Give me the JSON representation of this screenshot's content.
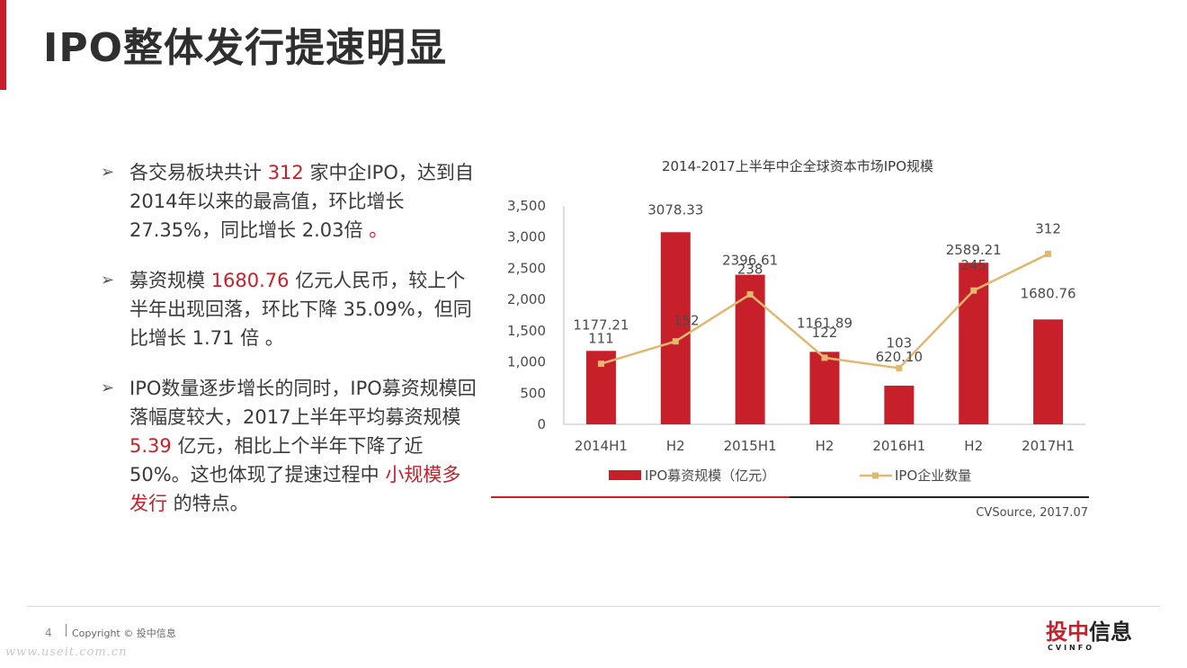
{
  "page": {
    "title": "IPO整体发行提速明显",
    "page_number": "4",
    "copyright": "Copyright © 投中信息",
    "watermark": "www.useit.com.cn"
  },
  "bullets": [
    {
      "marker": "➢",
      "before": "各交易板块共计 ",
      "highlight": "312",
      "after": " 家中企IPO，达到自2014年以来的最高值，环比增长27.35%，同比增长 2.03倍 ",
      "tail": "。"
    },
    {
      "marker": "➢",
      "before": "募资规模 ",
      "highlight": "1680.76",
      "after": " 亿元人民币，较上个半年出现回落，环比下降 35.09%，但同比增长 1.71 倍 。"
    },
    {
      "marker": "➢",
      "before": "IPO数量逐步增长的同时，IPO募资规模回落幅度较大，2017上半年平均募资规模 ",
      "highlight": "5.39",
      "after": " 亿元，相比上个半年下降了近 50%。这也体现了提速过程中 ",
      "highlight2": "小规模多发行",
      "after2": " 的特点。"
    }
  ],
  "logo": {
    "main_red": "投中",
    "main_dark": "信息",
    "sub": "CVINFO"
  },
  "chart_data": {
    "type": "bar",
    "title": "2014-2017上半年中企全球资本市场IPO规模",
    "categories": [
      "2014H1",
      "H2",
      "2015H1",
      "H2",
      "2016H1",
      "H2",
      "2017H1"
    ],
    "series": [
      {
        "name": "IPO募资规模（亿元）",
        "type": "bar",
        "color": "#c8202a",
        "values": [
          1177.21,
          3078.33,
          2396.61,
          1161.89,
          620.1,
          2589.21,
          1680.76
        ],
        "labels": [
          "1177.21",
          "3078.33",
          "2396.61",
          "1161.89",
          "620.10",
          "2589.21",
          "1680.76"
        ]
      },
      {
        "name": "IPO企业数量",
        "type": "line",
        "color": "#e2b870",
        "values": [
          111,
          152,
          238,
          122,
          103,
          245,
          312
        ],
        "labels": [
          "111",
          "152",
          "238",
          "122",
          "103",
          "245",
          "312"
        ]
      }
    ],
    "ylim": [
      0,
      3500
    ],
    "yticks": [
      "0",
      "500",
      "1,000",
      "1,500",
      "2,000",
      "2,500",
      "3,000",
      "3,500"
    ],
    "ytick_values": [
      0,
      500,
      1000,
      1500,
      2000,
      2500,
      3000,
      3500
    ],
    "secondary_ylim": [
      0,
      400
    ],
    "secondary_axis_visible": false,
    "xlabel": "",
    "ylabel": "",
    "legend_position": "bottom",
    "source": "CVSource, 2017.07"
  }
}
